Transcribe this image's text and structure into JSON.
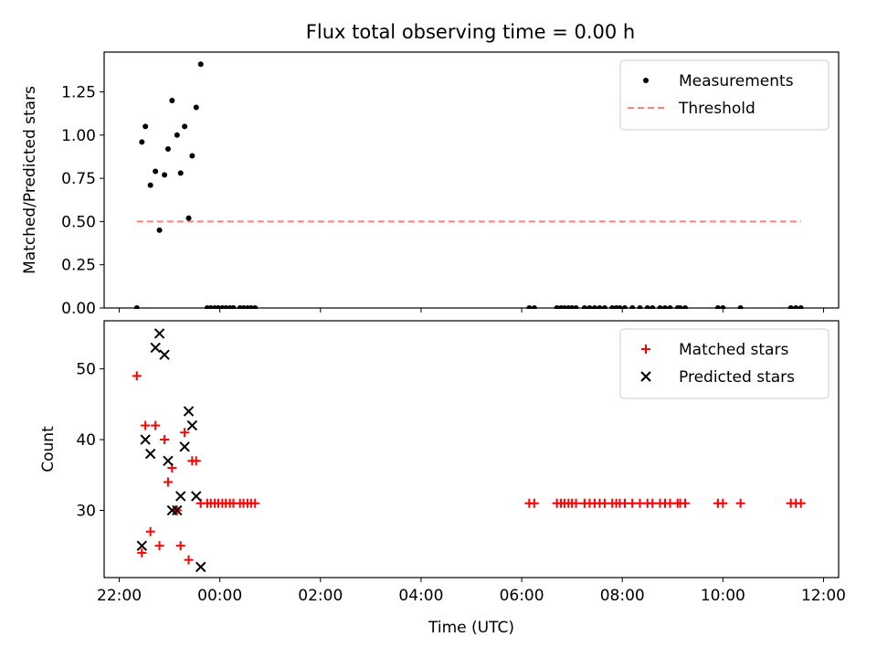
{
  "title": "Flux total observing time = 0.00 h",
  "colors": {
    "measurement": "#000000",
    "threshold": "#ff8080",
    "matched": "#ff0000",
    "predicted": "#000000"
  },
  "chart_data": [
    {
      "type": "scatter",
      "title": "Flux total observing time = 0.00 h",
      "ylabel": "Matched/Predicted stars",
      "xlabel": "",
      "x_unit": "hours since 22:00 UTC",
      "xlim": [
        -0.3,
        14.3
      ],
      "ylim": [
        0,
        1.48
      ],
      "yticks": [
        0.0,
        0.25,
        0.5,
        0.75,
        1.0,
        1.25
      ],
      "ytick_labels": [
        "0.00",
        "0.25",
        "0.50",
        "0.75",
        "1.00",
        "1.25"
      ],
      "legend": {
        "position": "top-right",
        "entries": [
          "Measurements",
          "Threshold"
        ]
      },
      "threshold": {
        "name": "Threshold",
        "y": 0.5,
        "x": [
          0.35,
          13.55
        ]
      },
      "series": [
        {
          "name": "Measurements",
          "points": [
            [
              0.35,
              0.0
            ],
            [
              0.45,
              0.96
            ],
            [
              0.52,
              1.05
            ],
            [
              0.62,
              0.71
            ],
            [
              0.72,
              0.79
            ],
            [
              0.8,
              0.45
            ],
            [
              0.9,
              0.77
            ],
            [
              0.97,
              0.92
            ],
            [
              1.05,
              1.2
            ],
            [
              1.15,
              1.0
            ],
            [
              1.22,
              0.78
            ],
            [
              1.3,
              1.05
            ],
            [
              1.38,
              0.52
            ],
            [
              1.45,
              0.88
            ],
            [
              1.53,
              1.16
            ],
            [
              1.62,
              1.41
            ],
            [
              1.75,
              0.0
            ],
            [
              1.82,
              0.0
            ],
            [
              1.9,
              0.0
            ],
            [
              1.97,
              0.0
            ],
            [
              2.05,
              0.0
            ],
            [
              2.12,
              0.0
            ],
            [
              2.2,
              0.0
            ],
            [
              2.27,
              0.0
            ],
            [
              2.4,
              0.0
            ],
            [
              2.47,
              0.0
            ],
            [
              2.55,
              0.0
            ],
            [
              2.62,
              0.0
            ],
            [
              2.7,
              0.0
            ],
            [
              8.15,
              0.0
            ],
            [
              8.25,
              0.0
            ],
            [
              8.7,
              0.0
            ],
            [
              8.78,
              0.0
            ],
            [
              8.85,
              0.0
            ],
            [
              8.93,
              0.0
            ],
            [
              9.0,
              0.0
            ],
            [
              9.08,
              0.0
            ],
            [
              9.25,
              0.0
            ],
            [
              9.35,
              0.0
            ],
            [
              9.45,
              0.0
            ],
            [
              9.55,
              0.0
            ],
            [
              9.65,
              0.0
            ],
            [
              9.8,
              0.0
            ],
            [
              9.88,
              0.0
            ],
            [
              9.95,
              0.0
            ],
            [
              10.05,
              0.0
            ],
            [
              10.2,
              0.0
            ],
            [
              10.35,
              0.0
            ],
            [
              10.5,
              0.0
            ],
            [
              10.6,
              0.0
            ],
            [
              10.75,
              0.0
            ],
            [
              10.85,
              0.0
            ],
            [
              10.95,
              0.0
            ],
            [
              11.1,
              0.0
            ],
            [
              11.15,
              0.0
            ],
            [
              11.25,
              0.0
            ],
            [
              11.9,
              0.0
            ],
            [
              12.0,
              0.0
            ],
            [
              12.35,
              0.0
            ],
            [
              13.35,
              0.0
            ],
            [
              13.45,
              0.0
            ],
            [
              13.55,
              0.0
            ]
          ]
        }
      ]
    },
    {
      "type": "scatter",
      "title": "",
      "ylabel": "Count",
      "xlabel": "Time (UTC)",
      "x_unit": "hours since 22:00 UTC",
      "xlim": [
        -0.3,
        14.3
      ],
      "ylim": [
        20.5,
        56.8
      ],
      "yticks": [
        30,
        40,
        50
      ],
      "ytick_labels": [
        "30",
        "40",
        "50"
      ],
      "xticks": [
        0,
        2,
        4,
        6,
        8,
        10,
        12,
        14
      ],
      "xtick_labels": [
        "22:00",
        "00:00",
        "02:00",
        "04:00",
        "06:00",
        "08:00",
        "10:00",
        "12:00"
      ],
      "legend": {
        "position": "top-right",
        "entries": [
          "Matched stars",
          "Predicted stars"
        ]
      },
      "series": [
        {
          "name": "Matched stars",
          "marker": "plus",
          "points": [
            [
              0.35,
              49
            ],
            [
              0.45,
              24
            ],
            [
              0.52,
              42
            ],
            [
              0.62,
              27
            ],
            [
              0.72,
              42
            ],
            [
              0.8,
              25
            ],
            [
              0.9,
              40
            ],
            [
              0.97,
              34
            ],
            [
              1.05,
              36
            ],
            [
              1.15,
              30
            ],
            [
              1.22,
              25
            ],
            [
              1.3,
              41
            ],
            [
              1.38,
              23
            ],
            [
              1.45,
              37
            ],
            [
              1.53,
              37
            ],
            [
              1.62,
              31
            ],
            [
              1.75,
              31
            ],
            [
              1.82,
              31
            ],
            [
              1.9,
              31
            ],
            [
              1.97,
              31
            ],
            [
              2.05,
              31
            ],
            [
              2.12,
              31
            ],
            [
              2.2,
              31
            ],
            [
              2.27,
              31
            ],
            [
              2.4,
              31
            ],
            [
              2.47,
              31
            ],
            [
              2.55,
              31
            ],
            [
              2.62,
              31
            ],
            [
              2.7,
              31
            ],
            [
              8.15,
              31
            ],
            [
              8.25,
              31
            ],
            [
              8.7,
              31
            ],
            [
              8.78,
              31
            ],
            [
              8.85,
              31
            ],
            [
              8.93,
              31
            ],
            [
              9.0,
              31
            ],
            [
              9.08,
              31
            ],
            [
              9.25,
              31
            ],
            [
              9.35,
              31
            ],
            [
              9.45,
              31
            ],
            [
              9.55,
              31
            ],
            [
              9.65,
              31
            ],
            [
              9.8,
              31
            ],
            [
              9.88,
              31
            ],
            [
              9.95,
              31
            ],
            [
              10.05,
              31
            ],
            [
              10.2,
              31
            ],
            [
              10.35,
              31
            ],
            [
              10.5,
              31
            ],
            [
              10.6,
              31
            ],
            [
              10.75,
              31
            ],
            [
              10.85,
              31
            ],
            [
              10.95,
              31
            ],
            [
              11.1,
              31
            ],
            [
              11.15,
              31
            ],
            [
              11.25,
              31
            ],
            [
              11.9,
              31
            ],
            [
              12.0,
              31
            ],
            [
              12.35,
              31
            ],
            [
              13.35,
              31
            ],
            [
              13.45,
              31
            ],
            [
              13.55,
              31
            ]
          ]
        },
        {
          "name": "Predicted stars",
          "marker": "x",
          "points": [
            [
              0.45,
              25
            ],
            [
              0.52,
              40
            ],
            [
              0.62,
              38
            ],
            [
              0.72,
              53
            ],
            [
              0.8,
              55
            ],
            [
              0.9,
              52
            ],
            [
              0.97,
              37
            ],
            [
              1.05,
              30
            ],
            [
              1.15,
              30
            ],
            [
              1.22,
              32
            ],
            [
              1.3,
              39
            ],
            [
              1.38,
              44
            ],
            [
              1.45,
              42
            ],
            [
              1.53,
              32
            ],
            [
              1.62,
              22
            ]
          ]
        }
      ]
    }
  ]
}
